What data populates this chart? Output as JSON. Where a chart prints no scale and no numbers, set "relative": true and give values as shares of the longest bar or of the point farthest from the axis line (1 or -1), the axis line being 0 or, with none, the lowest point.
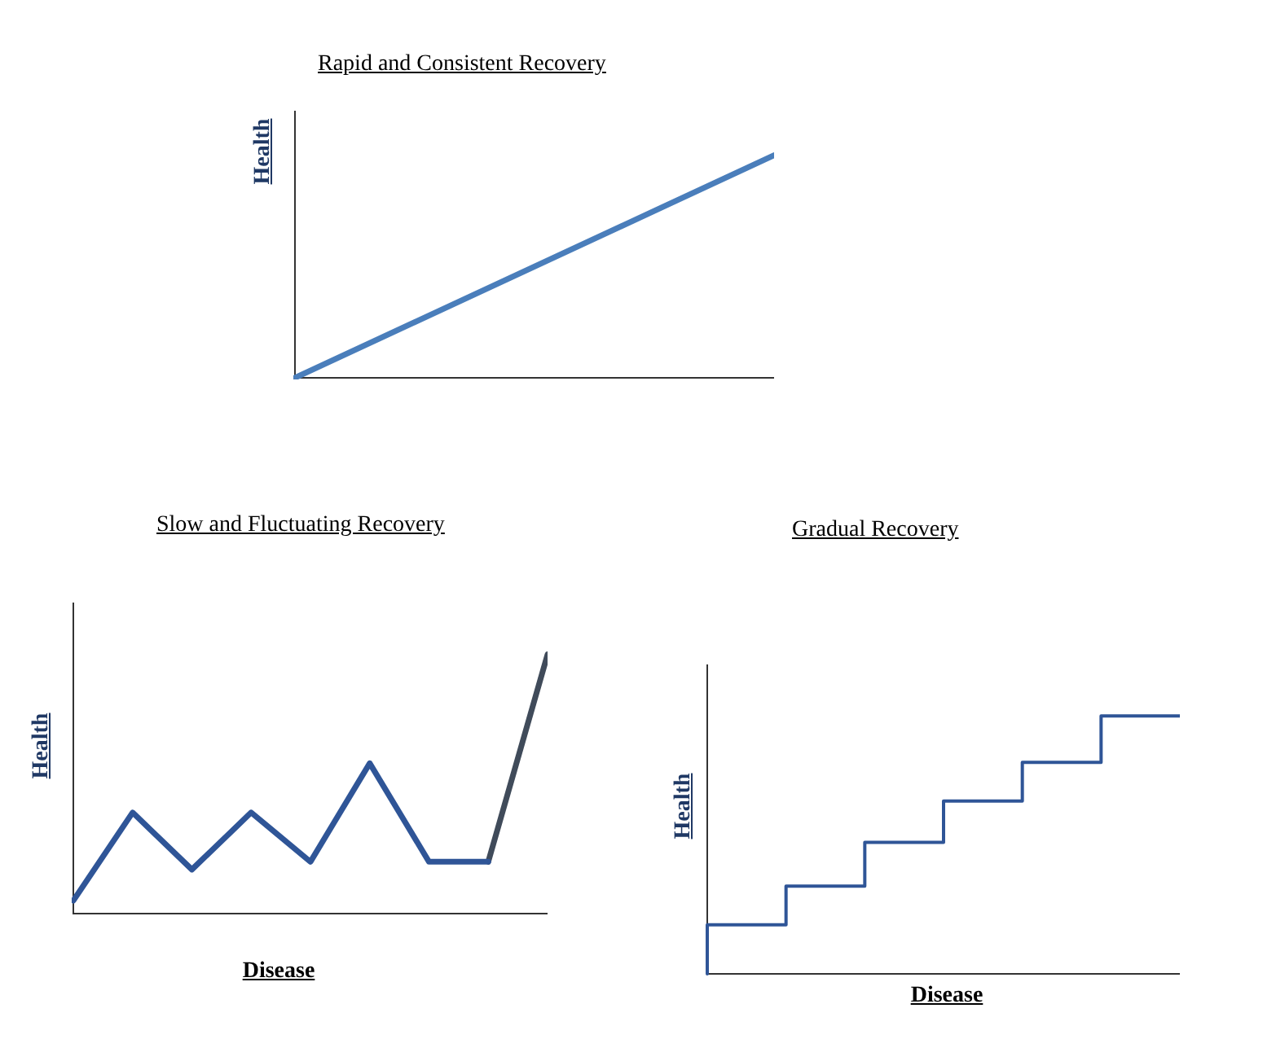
{
  "chart_data": [
    {
      "type": "line",
      "title": "Rapid and Consistent Recovery",
      "ylabel": "Health",
      "relative": true,
      "categories": [
        null,
        null
      ],
      "series": [
        {
          "color": "#4a7ebb",
          "values": [
            0,
            1
          ]
        }
      ]
    },
    {
      "type": "line",
      "title": "Slow and Fluctuating Recovery",
      "xlabel": "Disease",
      "ylabel": "Health",
      "relative": true,
      "categories": [
        null,
        null,
        null,
        null,
        null,
        null,
        null,
        null,
        null
      ],
      "series": [
        {
          "color": "#2f5597",
          "values": [
            0.05,
            0.39,
            0.17,
            0.39,
            0.2,
            0.58,
            0.2,
            0.2,
            null
          ]
        },
        {
          "color": "#404b5a",
          "values": [
            null,
            null,
            null,
            null,
            null,
            null,
            null,
            0.2,
            1
          ]
        }
      ]
    },
    {
      "type": "step",
      "title": "Gradual Recovery",
      "xlabel": "Disease",
      "ylabel": "Health",
      "relative": true,
      "categories": [
        null,
        null,
        null,
        null,
        null,
        null,
        null
      ],
      "series": [
        {
          "color": "#2f5597",
          "values": [
            0,
            0.19,
            0.34,
            0.51,
            0.67,
            0.82,
            1
          ]
        }
      ]
    }
  ]
}
